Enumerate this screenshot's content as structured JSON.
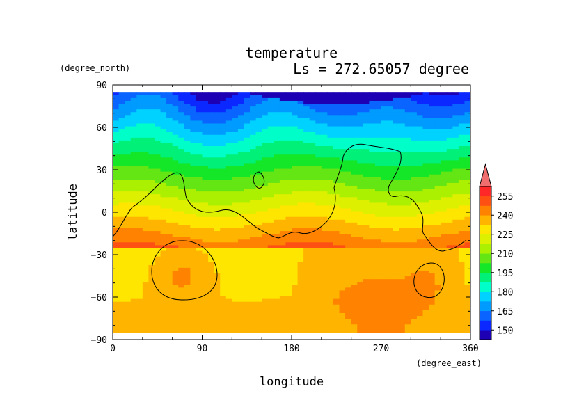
{
  "chart_data": {
    "type": "heatmap",
    "title": "temperature",
    "subtitle": "Ls = 272.65057 degree",
    "xlabel": "longitude",
    "ylabel": "latitude",
    "xunit": "(degree_east)",
    "yunit": "(degree_north)",
    "xlim": [
      0,
      360
    ],
    "ylim": [
      -90,
      90
    ],
    "xticks": [
      "0",
      "90",
      "180",
      "270",
      "360"
    ],
    "yticks": [
      "90",
      "60",
      "30",
      "0",
      "−30",
      "−60",
      "−90"
    ],
    "colorbar": {
      "levels": [
        142.5,
        150,
        157.5,
        165,
        172.5,
        180,
        187.5,
        195,
        202.5,
        210,
        217.5,
        225,
        232.5,
        240,
        247.5,
        255,
        262.5
      ],
      "labels": [
        "150",
        "165",
        "180",
        "195",
        "210",
        "225",
        "240",
        "255"
      ],
      "colors": [
        "#1e00b4",
        "#0a28ff",
        "#0a64ff",
        "#009bff",
        "#00d2ff",
        "#00ffc8",
        "#00f078",
        "#14e628",
        "#64e614",
        "#aaf000",
        "#dcf000",
        "#ffe600",
        "#ffb400",
        "#ff8200",
        "#ff5014",
        "#ff2828",
        "#f06e6e"
      ],
      "extend": "max"
    }
  }
}
